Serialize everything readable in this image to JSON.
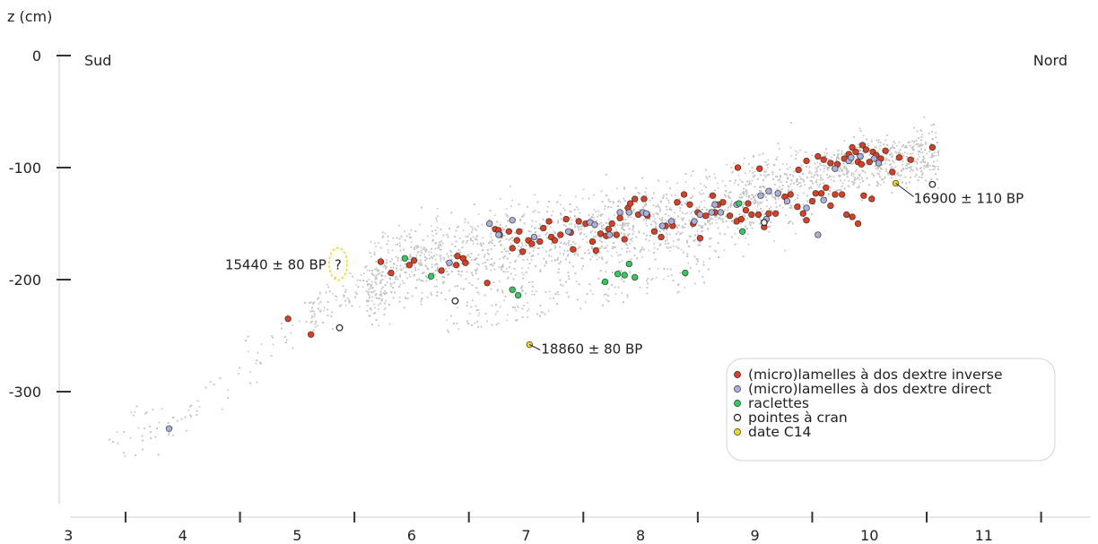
{
  "chart_data": {
    "type": "scatter",
    "ylabel": "z (cm)",
    "xlabel": "",
    "xlim": [
      2.45,
      11.95
    ],
    "ylim": [
      -400,
      0
    ],
    "y_ticks": [
      {
        "value": 0,
        "label": "0"
      },
      {
        "value": -100,
        "label": "-100"
      },
      {
        "value": -200,
        "label": "-200"
      },
      {
        "value": -300,
        "label": "-300"
      }
    ],
    "x_ticks": [
      {
        "value": 3,
        "label": "3"
      },
      {
        "value": 4,
        "label": "4"
      },
      {
        "value": 5,
        "label": "5"
      },
      {
        "value": 6,
        "label": "6"
      },
      {
        "value": 7,
        "label": "7"
      },
      {
        "value": 8,
        "label": "8"
      },
      {
        "value": 9,
        "label": "9"
      },
      {
        "value": 10,
        "label": "10"
      },
      {
        "value": 11,
        "label": "11"
      }
    ],
    "x_divisions": [
      3.5,
      4.5,
      5.5,
      6.5,
      7.5,
      8.5,
      9.5,
      10.5,
      11.5
    ],
    "grid": false,
    "legend_position": "bottom-right",
    "orientation_labels": {
      "left": "Sud",
      "right": "Nord"
    },
    "colors": {
      "background_points": "#c4c4c4",
      "axis": "#333333",
      "secondary_axis": "#cfcfcf"
    },
    "background_cloud": {
      "name": "",
      "color": "#c4c4c4",
      "band": [
        [
          3.4,
          -348
        ],
        [
          4.0,
          -320
        ],
        [
          4.6,
          -270
        ],
        [
          5.2,
          -225
        ],
        [
          5.6,
          -200
        ],
        [
          6.0,
          -186
        ],
        [
          6.5,
          -178
        ],
        [
          7.0,
          -166
        ],
        [
          7.5,
          -157
        ],
        [
          8.0,
          -150
        ],
        [
          8.5,
          -142
        ],
        [
          9.0,
          -125
        ],
        [
          9.5,
          -108
        ],
        [
          10.0,
          -95
        ],
        [
          10.6,
          -88
        ]
      ]
    },
    "series": [
      {
        "name": "(micro)lamelles à dos dextre inverse",
        "color": "#e03c1e",
        "points": [
          [
            4.92,
            -235
          ],
          [
            5.12,
            -249
          ],
          [
            5.73,
            -184
          ],
          [
            5.82,
            -194
          ],
          [
            5.98,
            -187
          ],
          [
            6.02,
            -183
          ],
          [
            6.26,
            -192
          ],
          [
            6.39,
            -187
          ],
          [
            6.4,
            -179
          ],
          [
            6.45,
            -181
          ],
          [
            6.47,
            -185
          ],
          [
            6.66,
            -203
          ],
          [
            6.73,
            -155
          ],
          [
            6.77,
            -160
          ],
          [
            6.76,
            -156
          ],
          [
            6.85,
            -157
          ],
          [
            6.88,
            -172
          ],
          [
            6.92,
            -165
          ],
          [
            6.94,
            -157
          ],
          [
            6.97,
            -175
          ],
          [
            7.02,
            -165
          ],
          [
            7.05,
            -168
          ],
          [
            7.12,
            -166
          ],
          [
            7.15,
            -154
          ],
          [
            7.2,
            -148
          ],
          [
            7.22,
            -162
          ],
          [
            7.25,
            -165
          ],
          [
            7.3,
            -160
          ],
          [
            7.35,
            -146
          ],
          [
            7.39,
            -158
          ],
          [
            7.41,
            -173
          ],
          [
            7.46,
            -148
          ],
          [
            7.52,
            -150
          ],
          [
            7.58,
            -166
          ],
          [
            7.61,
            -174
          ],
          [
            7.65,
            -159
          ],
          [
            7.7,
            -161
          ],
          [
            7.72,
            -155
          ],
          [
            7.75,
            -150
          ],
          [
            7.79,
            -160
          ],
          [
            7.82,
            -145
          ],
          [
            7.86,
            -164
          ],
          [
            7.89,
            -136
          ],
          [
            7.91,
            -132
          ],
          [
            7.95,
            -128
          ],
          [
            7.98,
            -142
          ],
          [
            8.03,
            -128
          ],
          [
            8.06,
            -143
          ],
          [
            8.12,
            -157
          ],
          [
            8.18,
            -162
          ],
          [
            8.22,
            -152
          ],
          [
            8.28,
            -152
          ],
          [
            8.32,
            -131
          ],
          [
            8.38,
            -124
          ],
          [
            8.43,
            -133
          ],
          [
            8.46,
            -150
          ],
          [
            8.5,
            -140
          ],
          [
            8.52,
            -163
          ],
          [
            8.57,
            -143
          ],
          [
            8.63,
            -125
          ],
          [
            8.65,
            -140
          ],
          [
            8.68,
            -133
          ],
          [
            8.72,
            -131
          ],
          [
            8.78,
            -143
          ],
          [
            8.84,
            -148
          ],
          [
            8.88,
            -146
          ],
          [
            8.92,
            -138
          ],
          [
            8.97,
            -142
          ],
          [
            9.03,
            -142
          ],
          [
            9.08,
            -153
          ],
          [
            9.12,
            -141
          ],
          [
            9.18,
            -141
          ],
          [
            9.26,
            -126
          ],
          [
            9.31,
            -124
          ],
          [
            9.37,
            -135
          ],
          [
            9.42,
            -141
          ],
          [
            9.45,
            -147
          ],
          [
            9.5,
            -130
          ],
          [
            9.53,
            -123
          ],
          [
            9.58,
            -123
          ],
          [
            9.62,
            -118
          ],
          [
            9.66,
            -134
          ],
          [
            9.7,
            -124
          ],
          [
            9.76,
            -124
          ],
          [
            9.8,
            -142
          ],
          [
            9.85,
            -144
          ],
          [
            9.9,
            -150
          ],
          [
            9.95,
            -125
          ],
          [
            10.02,
            -128
          ],
          [
            8.85,
            -100
          ],
          [
            8.94,
            -132
          ],
          [
            9.04,
            -101
          ],
          [
            9.38,
            -102
          ],
          [
            9.45,
            -94
          ],
          [
            9.55,
            -90
          ],
          [
            9.6,
            -93
          ],
          [
            9.66,
            -96
          ],
          [
            9.72,
            -97
          ],
          [
            9.78,
            -92
          ],
          [
            9.82,
            -88
          ],
          [
            9.85,
            -82
          ],
          [
            9.88,
            -86
          ],
          [
            9.92,
            -90
          ],
          [
            9.94,
            -80
          ],
          [
            9.97,
            -84
          ],
          [
            10.0,
            -95
          ],
          [
            10.03,
            -86
          ],
          [
            10.06,
            -89
          ],
          [
            10.1,
            -92
          ],
          [
            10.14,
            -85
          ],
          [
            10.2,
            -104
          ],
          [
            10.26,
            -91
          ],
          [
            10.36,
            -93
          ],
          [
            10.55,
            -82
          ],
          [
            9.9,
            -95
          ],
          [
            9.93,
            -97
          ]
        ]
      },
      {
        "name": "(micro)lamelles à dos dextre direct",
        "color": "#aab0dd",
        "points": [
          [
            3.88,
            -333
          ],
          [
            6.33,
            -185
          ],
          [
            6.68,
            -150
          ],
          [
            6.76,
            -160
          ],
          [
            6.88,
            -147
          ],
          [
            7.07,
            -162
          ],
          [
            7.37,
            -157
          ],
          [
            7.56,
            -149
          ],
          [
            7.6,
            -151
          ],
          [
            7.73,
            -160
          ],
          [
            7.82,
            -140
          ],
          [
            7.9,
            -140
          ],
          [
            8.02,
            -140
          ],
          [
            8.05,
            -141
          ],
          [
            8.19,
            -152
          ],
          [
            8.27,
            -148
          ],
          [
            8.47,
            -148
          ],
          [
            8.52,
            -142
          ],
          [
            8.65,
            -133
          ],
          [
            8.7,
            -140
          ],
          [
            8.84,
            -133
          ],
          [
            9.05,
            -125
          ],
          [
            9.1,
            -146
          ],
          [
            9.12,
            -121
          ],
          [
            9.2,
            -123
          ],
          [
            9.28,
            -130
          ],
          [
            9.45,
            -136
          ],
          [
            9.55,
            -160
          ],
          [
            9.7,
            -101
          ],
          [
            9.82,
            -94
          ],
          [
            9.84,
            -91
          ],
          [
            9.92,
            -90
          ],
          [
            10.04,
            -92
          ],
          [
            10.08,
            -96
          ],
          [
            9.6,
            -129
          ],
          [
            8.62,
            -140
          ]
        ]
      },
      {
        "name": "raclettes",
        "color": "#2ecc5a",
        "points": [
          [
            5.94,
            -181
          ],
          [
            6.17,
            -197
          ],
          [
            6.88,
            -209
          ],
          [
            6.93,
            -214
          ],
          [
            7.69,
            -202
          ],
          [
            7.8,
            -195
          ],
          [
            7.86,
            -196
          ],
          [
            7.95,
            -198
          ],
          [
            7.9,
            -186
          ],
          [
            8.39,
            -194
          ],
          [
            8.89,
            -157
          ],
          [
            8.86,
            -132
          ]
        ]
      },
      {
        "name": "pointes à cran",
        "color": "#ffffff",
        "stroke": "#222222",
        "points": [
          [
            5.37,
            -243
          ],
          [
            6.38,
            -219
          ],
          [
            9.08,
            -149
          ],
          [
            10.55,
            -115
          ]
        ]
      },
      {
        "name": "date C14",
        "color": "#f2d71e",
        "points": [
          [
            7.03,
            -258
          ],
          [
            10.23,
            -114
          ]
        ]
      }
    ],
    "annotations": [
      {
        "text": "16900 ± 110 BP",
        "x": 10.23,
        "y": -114
      },
      {
        "text": "18860 ± 80 BP",
        "x": 7.03,
        "y": -258
      },
      {
        "text": "15440 ± 80 BP",
        "x": 5.2,
        "y": -186,
        "uncertain_marker": "?"
      }
    ]
  }
}
